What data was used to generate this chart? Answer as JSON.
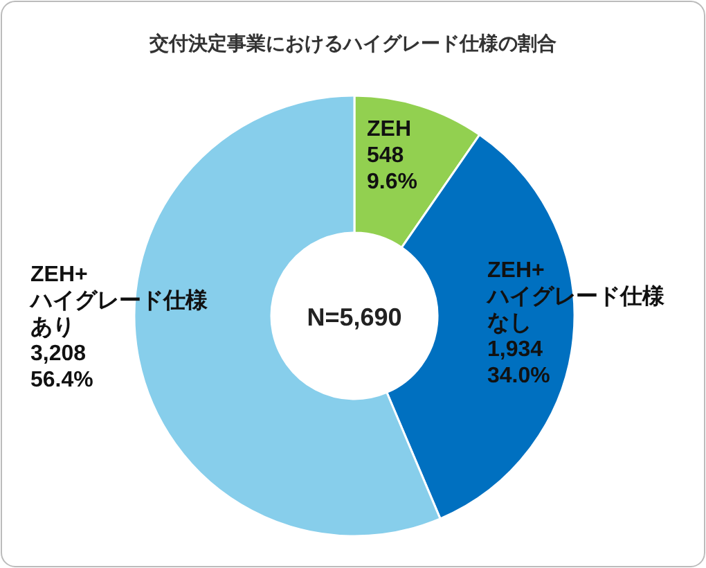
{
  "chart_data": {
    "type": "donut",
    "title": "交付決定事業におけるハイグレード仕様の割合",
    "categories": [
      "ZEH",
      "ZEH+\nハイグレード仕様なし",
      "ZEH+\nハイグレード仕様あり"
    ],
    "values": [
      548,
      1934,
      3208
    ],
    "value_labels": [
      "548\n9.6%",
      "1,934\n34.0%",
      "3,208\n56.4%"
    ],
    "colors": [
      "#92d050",
      "#0070c0",
      "#87ceeb"
    ],
    "annotations": [
      "N=5,690"
    ]
  }
}
